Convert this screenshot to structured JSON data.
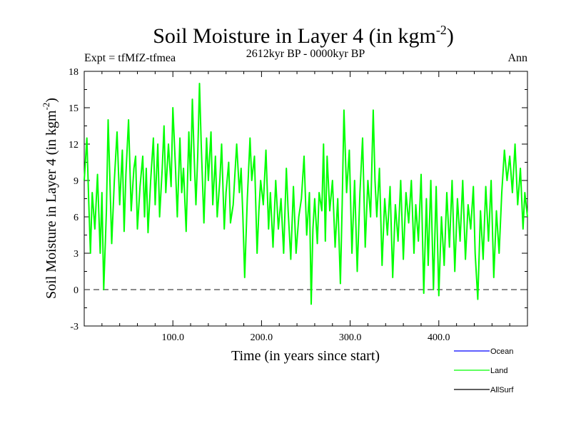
{
  "chart_data": {
    "type": "line",
    "title": "Soil Moisture in Layer 4 (in kgm",
    "title_superscript": "-2",
    "title_close": ")",
    "subtitle": "2612kyr BP - 0000kyr BP",
    "expt_label": "Expt = tfMfZ-tfmea",
    "season_label": "Ann",
    "xlabel": "Time (in years since start)",
    "ylabel": "Soil Moisture in Layer 4 (in kgm",
    "ylabel_superscript": "-2",
    "ylabel_close": ")",
    "xlim": [
      0,
      500
    ],
    "ylim": [
      -3,
      18
    ],
    "x_ticks": [
      100,
      200,
      300,
      400
    ],
    "x_tick_labels": [
      "100.0",
      "200.0",
      "300.0",
      "400.0"
    ],
    "y_ticks": [
      -3,
      0,
      3,
      6,
      9,
      12,
      15,
      18
    ],
    "y_tick_labels": [
      "-3",
      "0",
      "3",
      "6",
      "9",
      "12",
      "15",
      "18"
    ],
    "reference_line": 0,
    "legend": [
      {
        "name": "Ocean",
        "color": "#0000ff"
      },
      {
        "name": "Land",
        "color": "#00ff00"
      },
      {
        "name": "AllSurf",
        "color": "#000000"
      }
    ],
    "series": [
      {
        "name": "Land",
        "color": "#00ff00",
        "x": [
          0,
          3,
          5,
          7,
          9,
          12,
          15,
          18,
          20,
          22,
          25,
          27,
          29,
          31,
          34,
          37,
          40,
          43,
          45,
          47,
          50,
          53,
          56,
          58,
          60,
          63,
          66,
          68,
          70,
          72,
          75,
          78,
          80,
          83,
          85,
          88,
          90,
          92,
          95,
          98,
          100,
          103,
          105,
          108,
          110,
          112,
          115,
          118,
          120,
          122,
          124,
          126,
          128,
          130,
          132,
          135,
          138,
          140,
          143,
          145,
          148,
          150,
          153,
          155,
          158,
          160,
          163,
          165,
          168,
          170,
          172,
          175,
          177,
          179,
          181,
          184,
          187,
          189,
          192,
          195,
          197,
          199,
          202,
          205,
          208,
          210,
          213,
          216,
          219,
          222,
          225,
          228,
          230,
          233,
          236,
          239,
          242,
          245,
          248,
          251,
          254,
          256,
          258,
          260,
          263,
          265,
          268,
          270,
          272,
          274,
          277,
          280,
          283,
          286,
          289,
          291,
          293,
          296,
          299,
          302,
          305,
          308,
          311,
          314,
          317,
          320,
          323,
          326,
          328,
          330,
          333,
          336,
          339,
          342,
          345,
          348,
          351,
          354,
          357,
          360,
          363,
          366,
          369,
          372,
          374,
          377,
          380,
          383,
          386,
          388,
          391,
          394,
          397,
          400,
          403,
          406,
          409,
          412,
          415,
          418,
          421,
          424,
          427,
          430,
          433,
          436,
          439,
          441,
          444,
          447,
          450,
          453,
          456,
          459,
          462,
          465,
          468,
          471,
          474,
          477,
          480,
          483,
          486,
          489,
          492,
          495,
          497,
          500
        ],
        "values": [
          9.0,
          12.5,
          7.5,
          3.0,
          8.0,
          5.0,
          9.5,
          3.0,
          8.0,
          0.0,
          6.5,
          14.0,
          9.0,
          3.8,
          9.0,
          13.0,
          7.0,
          11.5,
          4.8,
          9.5,
          14.0,
          6.5,
          10.0,
          11.0,
          5.0,
          8.5,
          11.0,
          6.0,
          10.0,
          4.7,
          9.0,
          12.5,
          7.0,
          12.0,
          6.0,
          10.0,
          13.5,
          8.0,
          12.0,
          8.5,
          15.0,
          10.0,
          6.0,
          12.5,
          8.0,
          10.0,
          4.8,
          13.0,
          9.0,
          15.7,
          11.0,
          7.0,
          11.0,
          17.0,
          12.0,
          5.5,
          12.5,
          9.0,
          13.0,
          7.0,
          11.0,
          6.0,
          9.0,
          12.0,
          5.0,
          8.0,
          10.5,
          5.5,
          7.0,
          9.5,
          12.0,
          8.0,
          10.0,
          6.0,
          1.0,
          7.5,
          12.5,
          9.0,
          11.0,
          3.0,
          6.5,
          9.0,
          7.0,
          11.5,
          5.0,
          8.0,
          3.5,
          9.0,
          5.0,
          7.5,
          3.0,
          10.0,
          6.5,
          2.5,
          8.5,
          3.0,
          6.0,
          7.5,
          11.0,
          4.5,
          8.0,
          -1.2,
          5.0,
          7.5,
          3.8,
          8.0,
          6.5,
          12.0,
          4.0,
          11.0,
          6.5,
          9.0,
          3.5,
          7.5,
          0.5,
          7.0,
          14.8,
          8.0,
          11.5,
          3.0,
          9.0,
          1.5,
          8.0,
          12.5,
          3.5,
          9.0,
          6.0,
          14.8,
          9.0,
          6.0,
          10.0,
          2.0,
          7.5,
          4.5,
          8.5,
          1.0,
          7.0,
          4.0,
          9.0,
          2.5,
          8.0,
          5.5,
          9.0,
          3.0,
          7.0,
          4.0,
          9.5,
          -0.3,
          7.5,
          2.0,
          9.0,
          0.0,
          8.5,
          -0.5,
          6.0,
          2.0,
          8.0,
          3.5,
          9.0,
          1.5,
          7.5,
          4.0,
          9.0,
          2.5,
          7.0,
          5.0,
          8.5,
          3.0,
          -0.8,
          6.5,
          2.5,
          8.5,
          4.0,
          9.0,
          1.0,
          6.5,
          3.0,
          8.0,
          11.5,
          9.0,
          11.0,
          8.0,
          12.0,
          7.0,
          10.0,
          5.0,
          8.0,
          6.0
        ]
      }
    ]
  }
}
